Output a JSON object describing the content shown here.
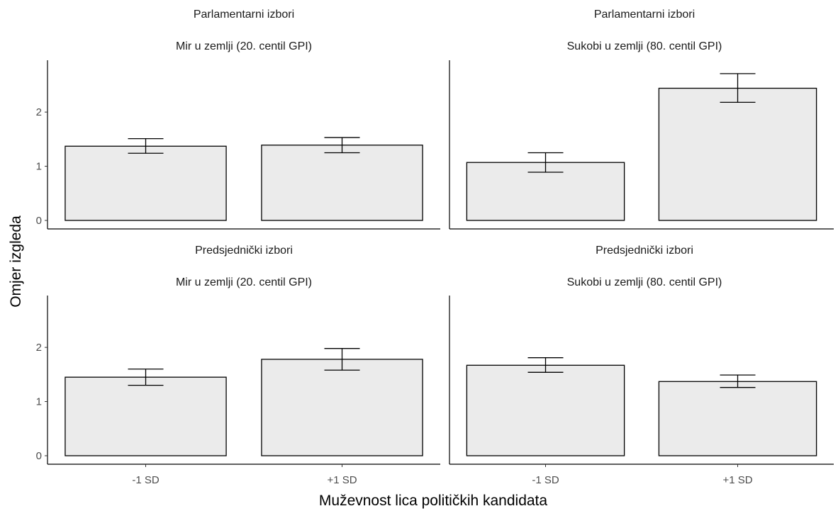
{
  "chart_data": {
    "type": "bar",
    "xlabel": "Muževnost lica političkih kandidata",
    "ylabel": "Omjer izgleda",
    "categories": [
      "-1 SD",
      "+1 SD"
    ],
    "ylim": [
      0,
      2.8
    ],
    "yticks": [
      0,
      1,
      2
    ],
    "grid": false,
    "bar_fill": "#ebebeb",
    "bar_stroke": "#000000",
    "panels": [
      {
        "title_line1": "Parlamentarni izbori",
        "title_line2": "Mir u zemlji (20. centil GPI)",
        "values": [
          1.37,
          1.39
        ],
        "error_low": [
          1.24,
          1.25
        ],
        "error_high": [
          1.51,
          1.53
        ]
      },
      {
        "title_line1": "Parlamentarni izbori",
        "title_line2": "Sukobi u zemlji (80. centil GPI)",
        "values": [
          1.07,
          2.44
        ],
        "error_low": [
          0.89,
          2.18
        ],
        "error_high": [
          1.25,
          2.71
        ]
      },
      {
        "title_line1": "Predsjednički izbori",
        "title_line2": "Mir u zemlji (20. centil GPI)",
        "values": [
          1.45,
          1.78
        ],
        "error_low": [
          1.3,
          1.58
        ],
        "error_high": [
          1.6,
          1.98
        ]
      },
      {
        "title_line1": "Predsjednički izbori",
        "title_line2": "Sukobi u zemlji (80. centil GPI)",
        "values": [
          1.67,
          1.37
        ],
        "error_low": [
          1.54,
          1.26
        ],
        "error_high": [
          1.81,
          1.49
        ]
      }
    ]
  }
}
